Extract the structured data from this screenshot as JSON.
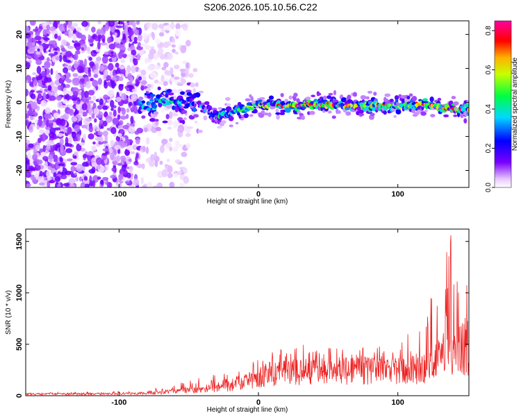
{
  "title": "S206.2026.105.10.56.C22",
  "colors": {
    "snr_line": "#ee2222",
    "axis": "#000000"
  },
  "chart_data": [
    {
      "type": "heatmap",
      "xlabel": "Height of straight line (km)",
      "ylabel": "Frequency (Hz)",
      "xlim": [
        -167,
        151
      ],
      "ylim": [
        -25,
        24
      ],
      "x_ticks": [
        -100,
        0,
        100
      ],
      "y_ticks": [
        -20,
        -10,
        0,
        10,
        20
      ],
      "colorbar": {
        "label": "Normalized spectral amplitude",
        "range": [
          0.0,
          0.85
        ],
        "ticks": [
          0.0,
          0.2,
          0.4,
          0.6,
          0.8
        ],
        "colormap": "rainbow (white-violet-blue-cyan-green-yellow-red-magenta)"
      },
      "ridge": {
        "description": "dominant frequency band",
        "x": [
          -85,
          -70,
          -60,
          -50,
          -40,
          -30,
          -20,
          -10,
          0,
          20,
          40,
          60,
          80,
          100,
          120,
          140,
          151
        ],
        "freq": [
          -1,
          0,
          0,
          0,
          -2,
          -4,
          -3,
          -2,
          -1,
          -1,
          -0.5,
          -1,
          -1,
          -1,
          -0.5,
          -2,
          -2
        ],
        "amplitude": [
          0.35,
          0.4,
          0.35,
          0.3,
          0.3,
          0.35,
          0.4,
          0.45,
          0.5,
          0.6,
          0.7,
          0.6,
          0.55,
          0.55,
          0.6,
          0.7,
          0.6
        ]
      },
      "noise_region": {
        "x_range": [
          -167,
          -85
        ],
        "freq_range": [
          -25,
          24
        ],
        "amplitude_range": [
          0.02,
          0.15
        ]
      }
    },
    {
      "type": "line",
      "xlabel": "Height of straight line (km)",
      "ylabel": "SNR (10 * v/v)",
      "xlim": [
        -167,
        151
      ],
      "ylim": [
        0,
        1620
      ],
      "x_ticks": [
        -100,
        0,
        100
      ],
      "y_ticks": [
        0,
        500,
        1000,
        1500
      ],
      "envelope": {
        "x": [
          -167,
          -120,
          -100,
          -80,
          -60,
          -40,
          -20,
          0,
          20,
          40,
          60,
          80,
          100,
          120,
          130,
          140,
          151
        ],
        "mean": [
          20,
          20,
          22,
          30,
          50,
          70,
          120,
          220,
          280,
          290,
          300,
          300,
          290,
          320,
          450,
          600,
          550
        ],
        "peak": [
          35,
          35,
          40,
          60,
          110,
          180,
          260,
          380,
          480,
          560,
          600,
          500,
          520,
          850,
          1300,
          1620,
          1000
        ]
      }
    }
  ]
}
